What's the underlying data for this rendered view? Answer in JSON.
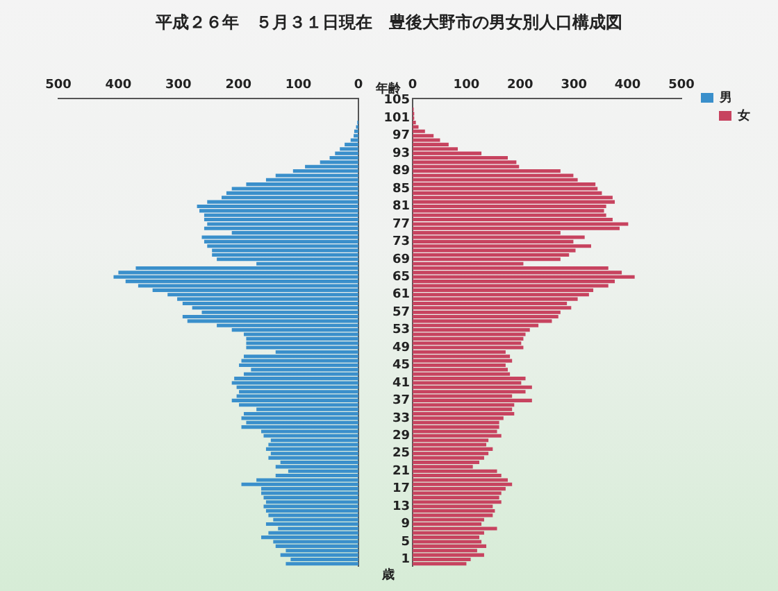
{
  "chart_data": [
    {
      "type": "bar",
      "orientation": "horizontal",
      "title": "平成２６年　５月３１日現在　豊後大野市の男女別人口構成図",
      "legend": "top right",
      "tick_labels": "x",
      "categories": [
        "105",
        null,
        null,
        null,
        "101",
        null,
        null,
        null,
        "97",
        null,
        null,
        null,
        "93",
        null,
        null,
        null,
        "89",
        null,
        null,
        null,
        "85",
        null,
        null,
        null,
        "81",
        null,
        null,
        null,
        "77",
        null,
        null,
        null,
        "73",
        null,
        null,
        null,
        "69",
        null,
        null,
        null,
        "65",
        null,
        null,
        null,
        "61",
        null,
        null,
        null,
        "57",
        null,
        null,
        null,
        "53",
        null,
        null,
        null,
        "49",
        null,
        null,
        null,
        "45",
        null,
        null,
        null,
        "41",
        null,
        null,
        null,
        "37",
        null,
        null,
        null,
        "33",
        null,
        null,
        null,
        "29",
        null,
        null,
        null,
        "25",
        null,
        null,
        null,
        "21",
        null,
        null,
        null,
        "17",
        null,
        null,
        null,
        "13",
        null,
        null,
        null,
        "9",
        null,
        null,
        null,
        "5",
        null,
        null,
        null,
        "1",
        null
      ],
      "xlim": [
        500,
        0
      ],
      "xticks": [
        500,
        400,
        300,
        200,
        100,
        0
      ],
      "series": [
        {
          "name": "男",
          "color": "#3a8fcb",
          "values": [
            0,
            0,
            0,
            0,
            0,
            2,
            4,
            7,
            8,
            13,
            23,
            31,
            39,
            48,
            64,
            89,
            109,
            138,
            154,
            187,
            211,
            220,
            228,
            252,
            269,
            265,
            257,
            257,
            252,
            257,
            211,
            261,
            257,
            252,
            244,
            244,
            236,
            170,
            371,
            400,
            408,
            388,
            367,
            343,
            318,
            302,
            293,
            277,
            261,
            293,
            285,
            236,
            211,
            191,
            187,
            187,
            187,
            138,
            191,
            195,
            199,
            179,
            191,
            207,
            211,
            203,
            199,
            203,
            211,
            199,
            170,
            191,
            195,
            187,
            195,
            162,
            158,
            146,
            150,
            154,
            146,
            150,
            130,
            138,
            117,
            138,
            170,
            195,
            162,
            162,
            158,
            154,
            158,
            154,
            150,
            142,
            154,
            134,
            150,
            162,
            142,
            138,
            121,
            130,
            113,
            121
          ]
        }
      ]
    },
    {
      "type": "bar",
      "orientation": "horizontal",
      "ylabel": "年齢",
      "annotations": [
        "歳"
      ],
      "legend": "top right",
      "categories": [
        "105",
        null,
        null,
        null,
        "101",
        null,
        null,
        null,
        "97",
        null,
        null,
        null,
        "93",
        null,
        null,
        null,
        "89",
        null,
        null,
        null,
        "85",
        null,
        null,
        null,
        "81",
        null,
        null,
        null,
        "77",
        null,
        null,
        null,
        "73",
        null,
        null,
        null,
        "69",
        null,
        null,
        null,
        "65",
        null,
        null,
        null,
        "61",
        null,
        null,
        null,
        "57",
        null,
        null,
        null,
        "53",
        null,
        null,
        null,
        "49",
        null,
        null,
        null,
        "45",
        null,
        null,
        null,
        "41",
        null,
        null,
        null,
        "37",
        null,
        null,
        null,
        "33",
        null,
        null,
        null,
        "29",
        null,
        null,
        null,
        "25",
        null,
        null,
        null,
        "21",
        null,
        null,
        null,
        "17",
        null,
        null,
        null,
        "13",
        null,
        null,
        null,
        "9",
        null,
        null,
        null,
        "5",
        null,
        null,
        null,
        "1",
        null
      ],
      "xlim": [
        0,
        500
      ],
      "xticks": [
        0,
        100,
        200,
        300,
        400,
        500
      ],
      "series": [
        {
          "name": "女",
          "color": "#c7435f",
          "values": [
            0,
            0,
            2,
            3,
            3,
            6,
            11,
            23,
            39,
            51,
            67,
            84,
            128,
            177,
            193,
            198,
            275,
            299,
            307,
            340,
            344,
            352,
            372,
            376,
            360,
            356,
            360,
            372,
            401,
            385,
            275,
            320,
            299,
            332,
            303,
            291,
            275,
            206,
            364,
            389,
            413,
            376,
            364,
            336,
            328,
            307,
            287,
            295,
            275,
            271,
            259,
            234,
            218,
            210,
            206,
            202,
            206,
            173,
            181,
            185,
            173,
            177,
            181,
            210,
            202,
            222,
            210,
            185,
            222,
            189,
            185,
            189,
            169,
            161,
            161,
            157,
            165,
            141,
            137,
            149,
            141,
            133,
            124,
            112,
            157,
            165,
            177,
            185,
            173,
            165,
            161,
            165,
            149,
            153,
            149,
            133,
            128,
            157,
            133,
            124,
            128,
            137,
            120,
            133,
            108,
            100
          ]
        }
      ]
    }
  ]
}
